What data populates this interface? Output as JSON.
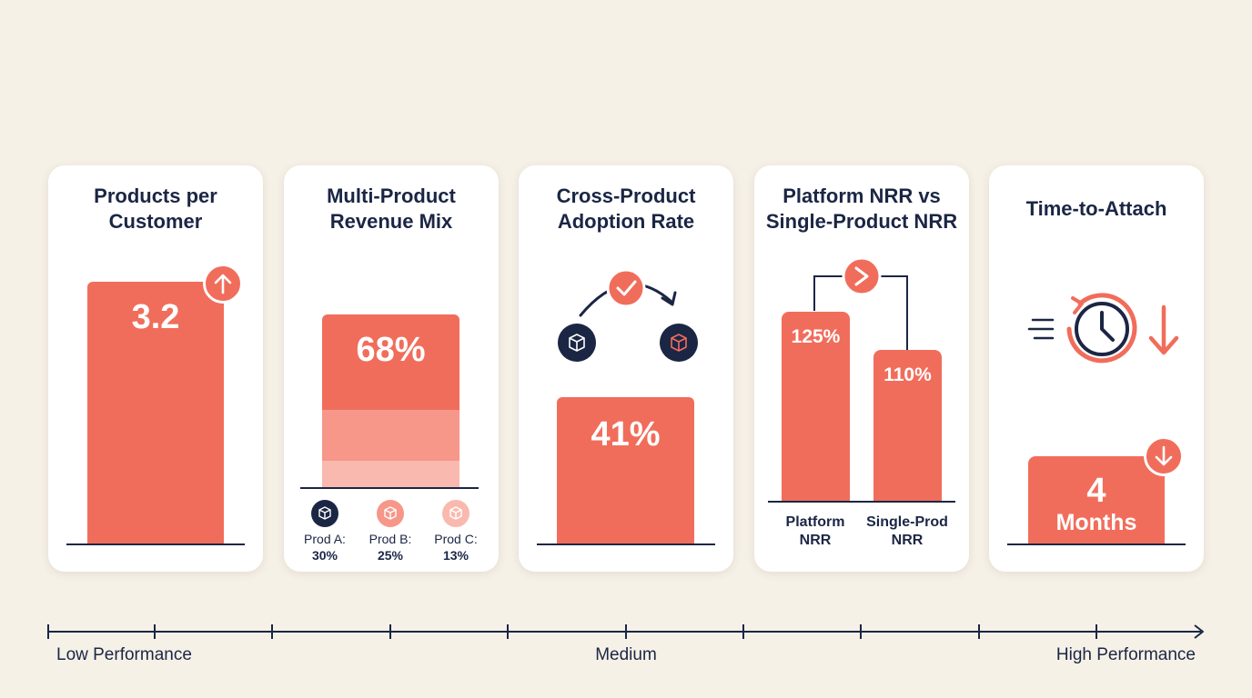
{
  "chart_data": [
    {
      "type": "bar",
      "title": "Products per Customer",
      "values": [
        3.2
      ],
      "value_label": "3.2",
      "trend_icon": "arrow-up-icon"
    },
    {
      "type": "bar",
      "title": "Multi-Product Revenue Mix",
      "value_label": "68%",
      "series": [
        {
          "name": "Prod A:",
          "value_label": "30%",
          "values": [
            30
          ],
          "color": "#f16d5b",
          "icon": "box-icon"
        },
        {
          "name": "Prod B:",
          "value_label": "25%",
          "values": [
            25
          ],
          "color": "#f6978a",
          "icon": "box-icon"
        },
        {
          "name": "Prod C:",
          "value_label": "13%",
          "values": [
            13
          ],
          "color": "#f9b9ae",
          "icon": "box-icon"
        }
      ],
      "stacked": true
    },
    {
      "type": "bar",
      "title": "Cross-Product Adoption Rate",
      "values": [
        41
      ],
      "value_label": "41%",
      "icons": [
        "box-icon",
        "check-icon",
        "curved-arrow-icon",
        "box-icon"
      ]
    },
    {
      "type": "bar",
      "title": "Platform NRR vs Single-Product NRR",
      "categories": [
        "Platform NRR",
        "Single-Prod NRR"
      ],
      "values": [
        125,
        110
      ],
      "value_labels": [
        "125%",
        "110%"
      ],
      "comparison_icon": "greater-than-icon"
    },
    {
      "type": "bar",
      "title": "Time-to-Attach",
      "values": [
        4
      ],
      "value_number": "4",
      "value_unit": "Months",
      "trend_icon": "arrow-down-icon",
      "icons": [
        "clock-icon",
        "arrow-down-icon"
      ]
    }
  ],
  "scale": {
    "low": "Low Performance",
    "medium": "Medium",
    "high": "High Performance"
  },
  "colors": {
    "background": "#f6f1e7",
    "accent": "#f16d5b",
    "navy": "#1b2645"
  }
}
